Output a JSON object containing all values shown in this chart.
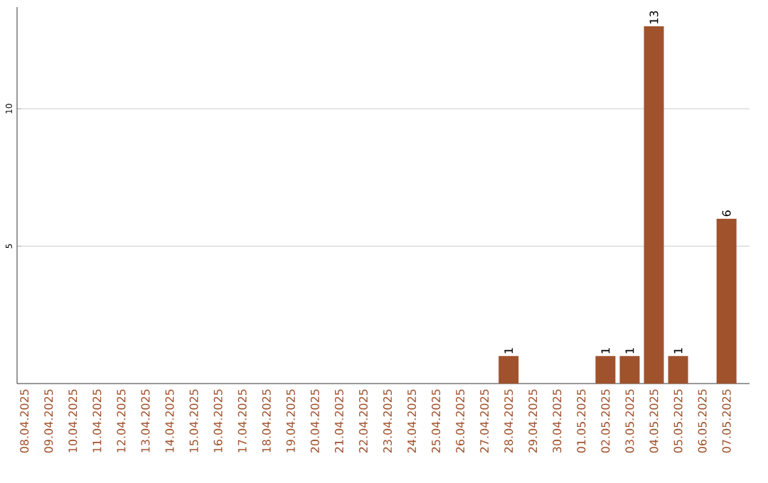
{
  "chart_data": {
    "type": "bar",
    "categories": [
      "08.04.2025",
      "09.04.2025",
      "10.04.2025",
      "11.04.2025",
      "12.04.2025",
      "13.04.2025",
      "14.04.2025",
      "15.04.2025",
      "16.04.2025",
      "17.04.2025",
      "18.04.2025",
      "19.04.2025",
      "20.04.2025",
      "21.04.2025",
      "22.04.2025",
      "23.04.2025",
      "24.04.2025",
      "25.04.2025",
      "26.04.2025",
      "27.04.2025",
      "28.04.2025",
      "29.04.2025",
      "30.04.2025",
      "01.05.2025",
      "02.05.2025",
      "03.05.2025",
      "04.05.2025",
      "05.05.2025",
      "06.05.2025",
      "07.05.2025"
    ],
    "values": [
      0,
      0,
      0,
      0,
      0,
      0,
      0,
      0,
      0,
      0,
      0,
      0,
      0,
      0,
      0,
      0,
      0,
      0,
      0,
      0,
      1,
      0,
      0,
      0,
      1,
      1,
      13,
      1,
      0,
      6
    ],
    "value_labels": [
      null,
      null,
      null,
      null,
      null,
      null,
      null,
      null,
      null,
      null,
      null,
      null,
      null,
      null,
      null,
      null,
      null,
      null,
      null,
      null,
      "1",
      null,
      null,
      null,
      "1",
      "1",
      "13",
      "1",
      null,
      "6"
    ],
    "color": "#a0522d",
    "ylim": [
      0,
      13.7
    ],
    "yticks": [
      5,
      10
    ],
    "grid": "y"
  }
}
